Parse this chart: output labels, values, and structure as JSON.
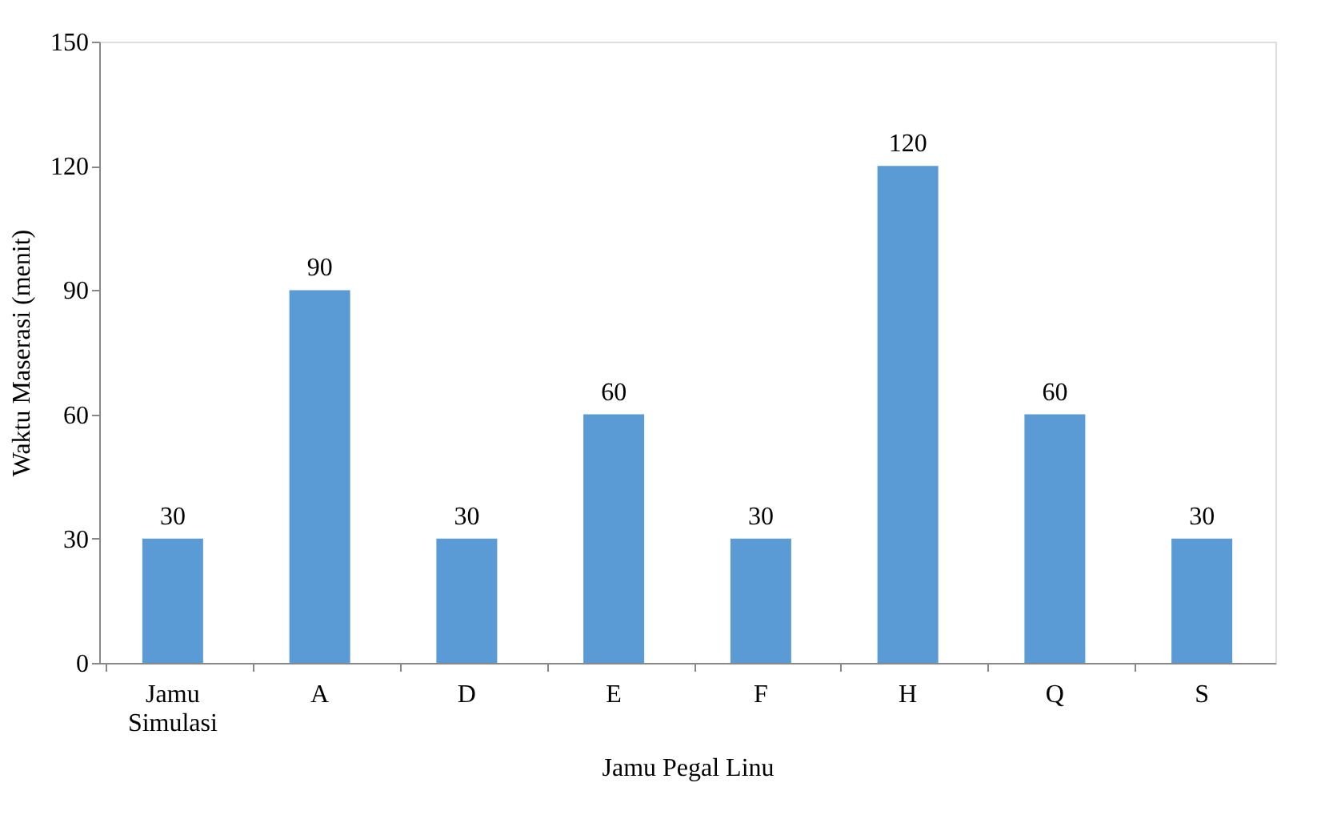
{
  "chart_data": {
    "type": "bar",
    "xlabel": "Jamu Pegal Linu",
    "ylabel": "Waktu Maserasi (menit)",
    "categories": [
      "Jamu Simulasi",
      "A",
      "D",
      "E",
      "F",
      "H",
      "Q",
      "S"
    ],
    "values": [
      30,
      90,
      30,
      60,
      30,
      120,
      60,
      30
    ],
    "color": "#5b9bd5",
    "ylim": [
      0,
      150
    ],
    "yticks": [
      0,
      30,
      60,
      90,
      120,
      150
    ],
    "grid": false,
    "data_labels": true
  }
}
